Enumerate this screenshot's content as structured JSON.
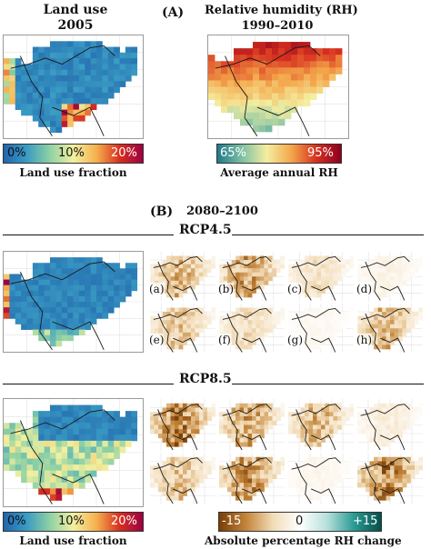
{
  "panel_a": {
    "label": "(A)",
    "land_use": {
      "title_line1": "Land use",
      "title_line2": "2005",
      "colorbar_ticks": [
        "0%",
        "10%",
        "20%"
      ],
      "colorbar_caption": "Land use fraction"
    },
    "humidity": {
      "title_line1": "Relative humidity (RH)",
      "title_line2": "1990–2010",
      "colorbar_ticks": [
        "65%",
        "95%"
      ],
      "colorbar_caption": "Average annual RH"
    }
  },
  "panel_b": {
    "label": "(B)",
    "period": "2080–2100",
    "scenario_1": "RCP4.5",
    "scenario_2": "RCP8.5",
    "subpanel_labels": [
      "(a)",
      "(b)",
      "(c)",
      "(d)",
      "(e)",
      "(f)",
      "(g)",
      "(h)"
    ],
    "land_use_colorbar": {
      "ticks": [
        "0%",
        "10%",
        "20%"
      ],
      "caption": "Land use fraction"
    },
    "change_colorbar": {
      "ticks": [
        "-15",
        "0",
        "+15"
      ],
      "caption": "Absolute percentage RH change"
    }
  },
  "colors": {
    "land_use_ramp": [
      "#2166ac",
      "#3a9cc4",
      "#8ed1a4",
      "#f2f0a0",
      "#f6b04e",
      "#d7301f",
      "#9e0142"
    ],
    "humidity_ramp": [
      "#1f7a8c",
      "#7fc0a4",
      "#f4eea0",
      "#f4a64a",
      "#d7301f",
      "#8b0020"
    ],
    "change_ramp": [
      "#7a3e08",
      "#c4853a",
      "#f2dcb8",
      "#ffffff",
      "#b6e0dc",
      "#2a9a94",
      "#05504a"
    ]
  }
}
